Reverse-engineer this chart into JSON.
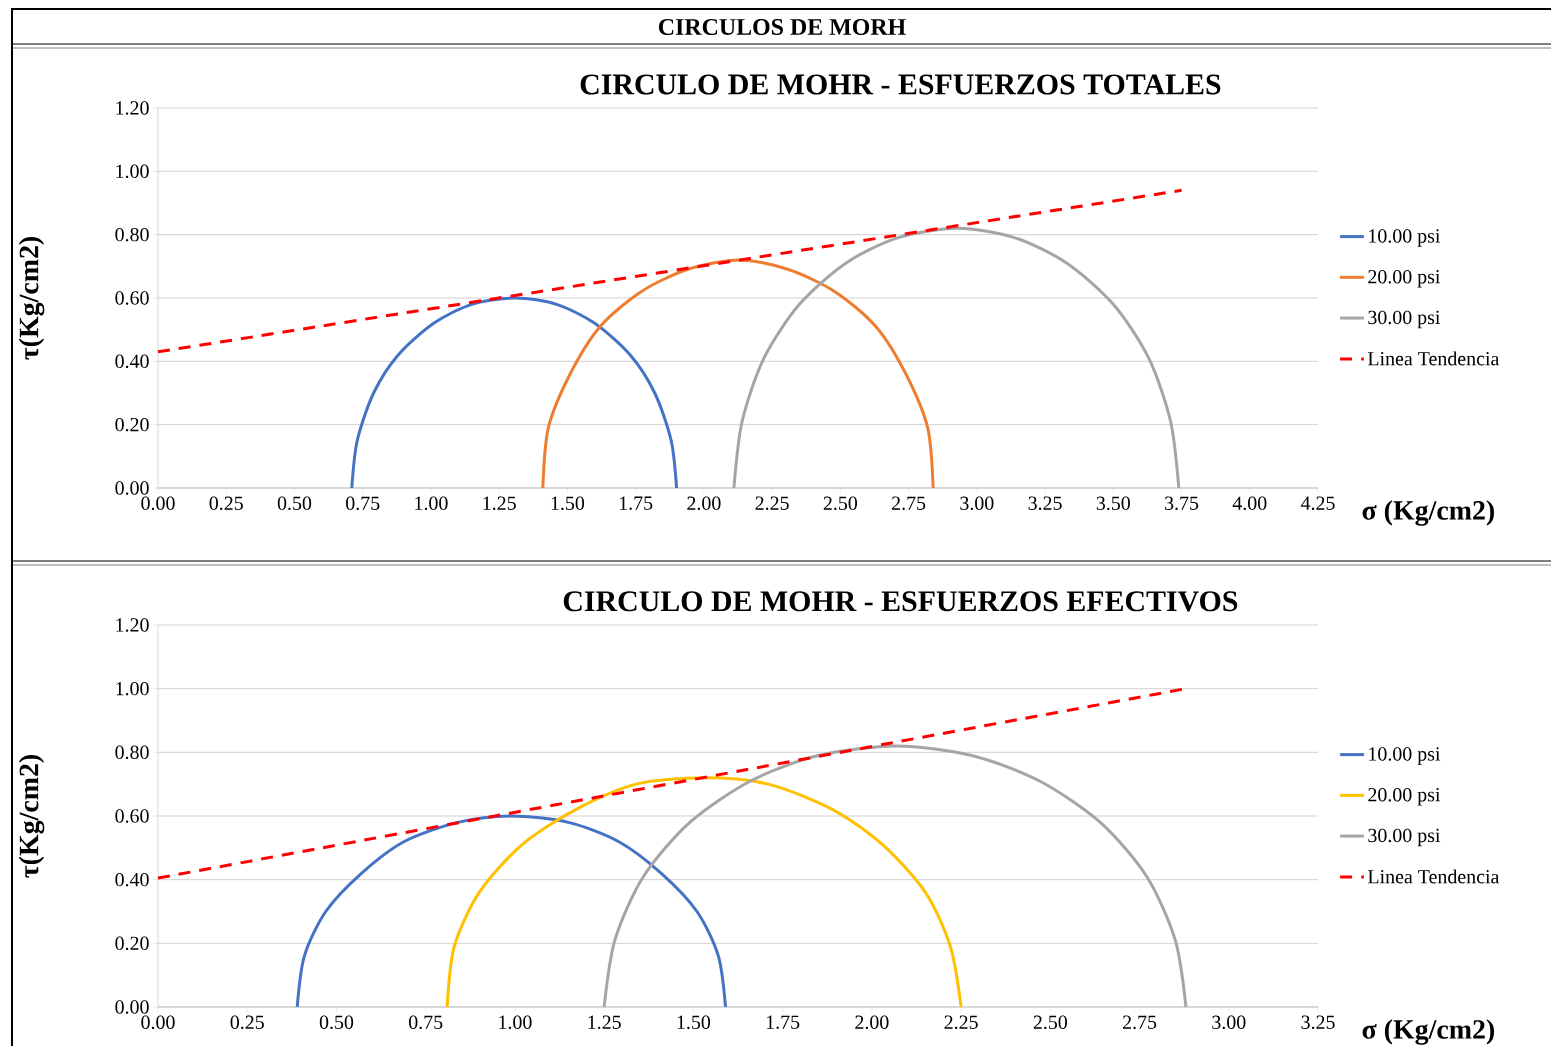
{
  "chart_data": [
    {
      "type": "other",
      "title": "CIRCULOS DE MORH"
    },
    {
      "type": "line",
      "title": "CIRCULO DE MOHR - ESFUERZOS TOTALES",
      "xlabel": "σ (Kg/cm2)",
      "ylabel": "τ(Kg/cm2)",
      "grid": "y",
      "legend": "right",
      "xlim": [
        0,
        4.25
      ],
      "ylim": [
        0,
        1.2
      ],
      "xticks": [
        {
          "value": 0,
          "label": "0.00"
        },
        {
          "value": 0.25,
          "label": "0.25"
        },
        {
          "value": 0.5,
          "label": "0.50"
        },
        {
          "value": 0.75,
          "label": "0.75"
        },
        {
          "value": 1,
          "label": "1.00"
        },
        {
          "value": 1.25,
          "label": "1.25"
        },
        {
          "value": 1.5,
          "label": "1.50"
        },
        {
          "value": 1.75,
          "label": "1.75"
        },
        {
          "value": 2,
          "label": "2.00"
        },
        {
          "value": 2.25,
          "label": "2.25"
        },
        {
          "value": 2.5,
          "label": "2.50"
        },
        {
          "value": 2.75,
          "label": "2.75"
        },
        {
          "value": 3,
          "label": "3.00"
        },
        {
          "value": 3.25,
          "label": "3.25"
        },
        {
          "value": 3.5,
          "label": "3.50"
        },
        {
          "value": 3.75,
          "label": "3.75"
        },
        {
          "value": 4,
          "label": "4.00"
        },
        {
          "value": 4.25,
          "label": "4.25"
        }
      ],
      "yticks": [
        {
          "value": 0,
          "label": "0.00"
        },
        {
          "value": 0.2,
          "label": "0.20"
        },
        {
          "value": 0.4,
          "label": "0.40"
        },
        {
          "value": 0.6,
          "label": "0.60"
        },
        {
          "value": 0.8,
          "label": "0.80"
        },
        {
          "value": 1,
          "label": "1.00"
        },
        {
          "value": 1.2,
          "label": "1.20"
        }
      ],
      "series": [
        {
          "name": "10.00 psi",
          "color": "#4472c4",
          "line_style": "solid",
          "x": [
            0.71,
            0.73,
            0.79,
            0.88,
            1.01,
            1.15,
            1.31,
            1.46,
            1.6,
            1.73,
            1.82,
            1.88,
            1.9
          ],
          "values": [
            0,
            0.15,
            0.3,
            0.42,
            0.52,
            0.58,
            0.6,
            0.58,
            0.52,
            0.42,
            0.3,
            0.15,
            0
          ]
        },
        {
          "name": "20.00 psi",
          "color": "#ed7d31",
          "line_style": "solid",
          "x": [
            1.41,
            1.43,
            1.51,
            1.62,
            1.77,
            1.94,
            2.13,
            2.31,
            2.48,
            2.63,
            2.74,
            2.82,
            2.84
          ],
          "values": [
            0,
            0.19,
            0.36,
            0.51,
            0.62,
            0.69,
            0.72,
            0.69,
            0.62,
            0.51,
            0.36,
            0.19,
            0
          ]
        },
        {
          "name": "30.00 psi",
          "color": "#a5a5a5",
          "line_style": "solid",
          "x": [
            2.11,
            2.14,
            2.22,
            2.35,
            2.52,
            2.71,
            2.93,
            3.14,
            3.33,
            3.5,
            3.63,
            3.71,
            3.74
          ],
          "values": [
            0,
            0.21,
            0.41,
            0.58,
            0.71,
            0.79,
            0.82,
            0.79,
            0.71,
            0.58,
            0.41,
            0.21,
            0
          ]
        },
        {
          "name": "Linea Tendencia",
          "color": "#ff0000",
          "line_style": "dashed",
          "x": [
            0,
            3.75
          ],
          "values": [
            0.43,
            0.94
          ]
        }
      ]
    },
    {
      "type": "line",
      "title": "CIRCULO DE MOHR - ESFUERZOS EFECTIVOS",
      "xlabel": "σ (Kg/cm2)",
      "ylabel": "τ(Kg/cm2)",
      "grid": "y",
      "legend": "right",
      "xlim": [
        0,
        3.25
      ],
      "ylim": [
        0,
        1.2
      ],
      "xticks": [
        {
          "value": 0,
          "label": "0.00"
        },
        {
          "value": 0.25,
          "label": "0.25"
        },
        {
          "value": 0.5,
          "label": "0.50"
        },
        {
          "value": 0.75,
          "label": "0.75"
        },
        {
          "value": 1,
          "label": "1.00"
        },
        {
          "value": 1.25,
          "label": "1.25"
        },
        {
          "value": 1.5,
          "label": "1.50"
        },
        {
          "value": 1.75,
          "label": "1.75"
        },
        {
          "value": 2,
          "label": "2.00"
        },
        {
          "value": 2.25,
          "label": "2.25"
        },
        {
          "value": 2.5,
          "label": "2.50"
        },
        {
          "value": 2.75,
          "label": "2.75"
        },
        {
          "value": 3,
          "label": "3.00"
        },
        {
          "value": 3.25,
          "label": "3.25"
        }
      ],
      "yticks": [
        {
          "value": 0,
          "label": "0.00"
        },
        {
          "value": 0.2,
          "label": "0.20"
        },
        {
          "value": 0.4,
          "label": "0.40"
        },
        {
          "value": 0.6,
          "label": "0.60"
        },
        {
          "value": 0.8,
          "label": "0.80"
        },
        {
          "value": 1,
          "label": "1.00"
        },
        {
          "value": 1.2,
          "label": "1.20"
        }
      ],
      "series": [
        {
          "name": "10.00 psi",
          "color": "#4472c4",
          "line_style": "solid",
          "x": [
            0.39,
            0.41,
            0.47,
            0.57,
            0.69,
            0.84,
            0.99,
            1.15,
            1.29,
            1.41,
            1.51,
            1.57,
            1.59
          ],
          "values": [
            0,
            0.16,
            0.3,
            0.42,
            0.52,
            0.58,
            0.6,
            0.58,
            0.52,
            0.42,
            0.3,
            0.16,
            0
          ]
        },
        {
          "name": "20.00 psi",
          "color": "#ffc000",
          "line_style": "solid",
          "x": [
            0.81,
            0.83,
            0.9,
            1.02,
            1.17,
            1.34,
            1.53,
            1.71,
            1.89,
            2.03,
            2.15,
            2.22,
            2.25
          ],
          "values": [
            0,
            0.19,
            0.36,
            0.51,
            0.62,
            0.7,
            0.72,
            0.7,
            0.62,
            0.51,
            0.36,
            0.19,
            0
          ]
        },
        {
          "name": "30.00 psi",
          "color": "#a5a5a5",
          "line_style": "solid",
          "x": [
            1.25,
            1.28,
            1.36,
            1.49,
            1.66,
            1.85,
            2.07,
            2.28,
            2.47,
            2.64,
            2.77,
            2.85,
            2.88
          ],
          "values": [
            0,
            0.21,
            0.41,
            0.58,
            0.71,
            0.79,
            0.82,
            0.79,
            0.71,
            0.58,
            0.41,
            0.21,
            0
          ]
        },
        {
          "name": "Linea Tendencia",
          "color": "#ff0000",
          "line_style": "dashed",
          "x": [
            0,
            2.88
          ],
          "values": [
            0.405,
            1.0
          ]
        }
      ]
    }
  ]
}
